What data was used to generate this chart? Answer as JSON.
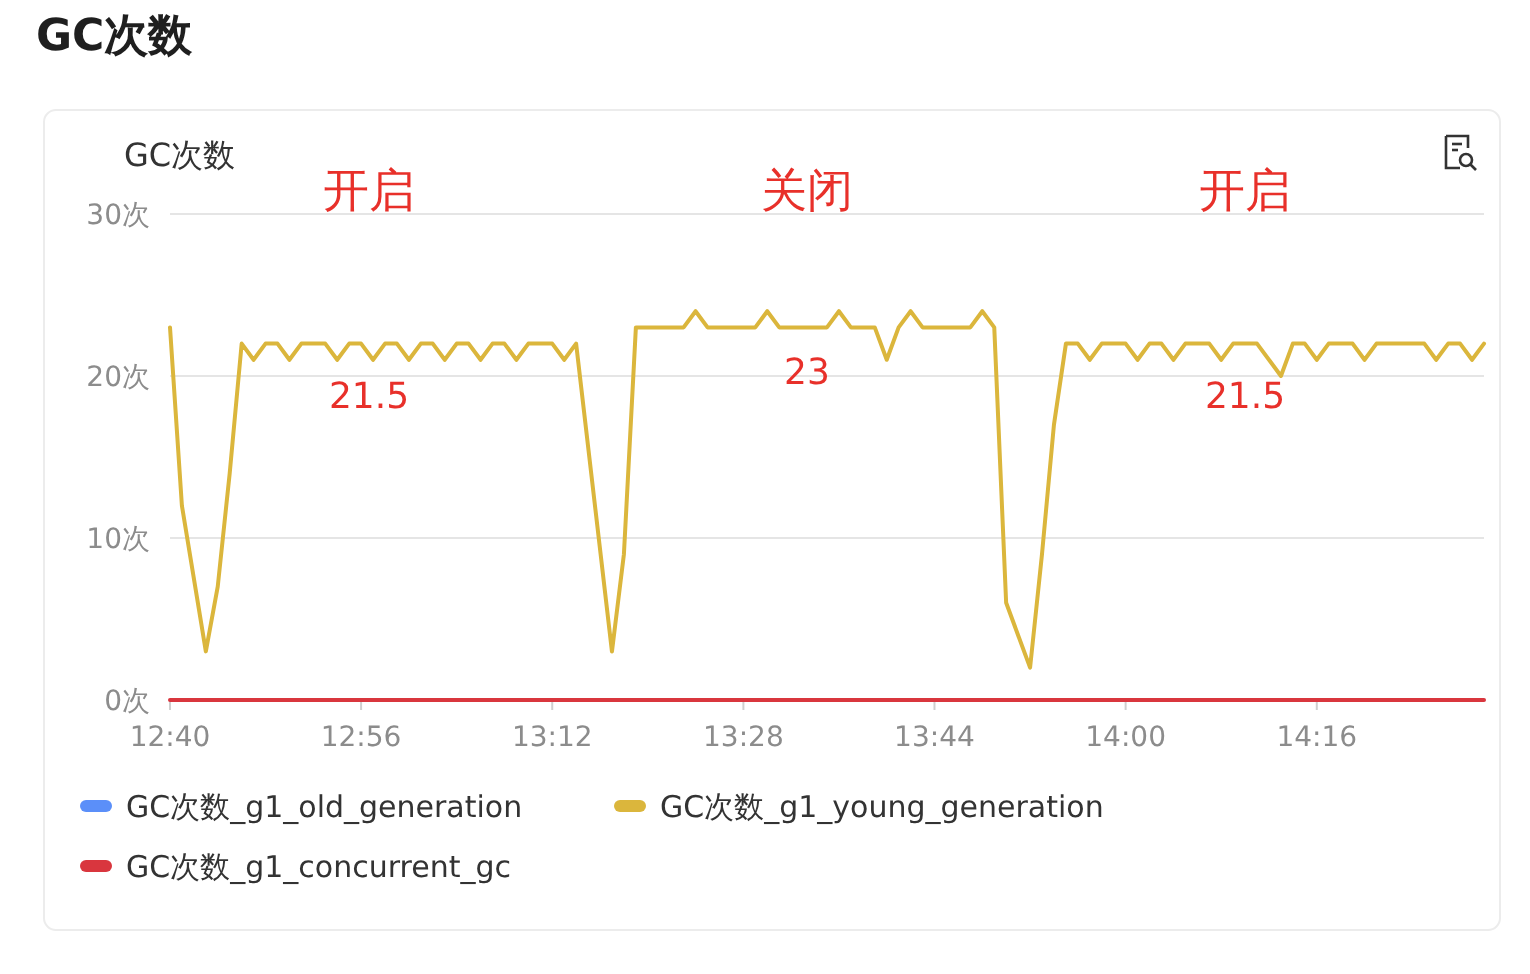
{
  "chart_data": {
    "type": "line",
    "title": "GC次数",
    "subtitle": "GC次数",
    "xlim": [
      12.6667,
      14.5
    ],
    "xticks": [
      {
        "value": 12.6667,
        "label": "12:40"
      },
      {
        "value": 12.9333,
        "label": "12:56"
      },
      {
        "value": 13.2,
        "label": "13:12"
      },
      {
        "value": 13.4667,
        "label": "13:28"
      },
      {
        "value": 13.7333,
        "label": "13:44"
      },
      {
        "value": 14,
        "label": "14:00"
      },
      {
        "value": 14.2667,
        "label": "14:16"
      }
    ],
    "ylim": [
      0,
      30
    ],
    "yticks": [
      {
        "value": 0,
        "label": "0次"
      },
      {
        "value": 10,
        "label": "10次"
      },
      {
        "value": 20,
        "label": "20次"
      },
      {
        "value": 30,
        "label": "30次"
      }
    ],
    "grid": "y",
    "legend": "bottom",
    "marker": "none",
    "line_style": "solid",
    "series": [
      {
        "name": "GC次数_g1_old_generation",
        "color": "#5b8ff9"
      },
      {
        "name": "GC次数_g1_young_generation",
        "color": "#dbb63c",
        "x": [
          12.6667,
          12.6833,
          12.7167,
          12.7333,
          12.75,
          12.7667,
          12.7833,
          12.8,
          12.8167,
          12.8333,
          12.85,
          12.8833,
          12.9,
          12.9167,
          12.9333,
          12.95,
          12.9667,
          12.9833,
          13,
          13.0167,
          13.0333,
          13.05,
          13.0667,
          13.0833,
          13.1,
          13.1167,
          13.1333,
          13.15,
          13.1667,
          13.2,
          13.2167,
          13.2333,
          13.2833,
          13.3,
          13.3167,
          13.3833,
          13.4,
          13.4167,
          13.4833,
          13.5,
          13.5167,
          13.5833,
          13.6,
          13.6167,
          13.65,
          13.6667,
          13.6833,
          13.7,
          13.7167,
          13.7833,
          13.8,
          13.8167,
          13.8333,
          13.8667,
          13.8833,
          13.9,
          13.9167,
          13.9333,
          13.95,
          13.9667,
          14,
          14.0167,
          14.0333,
          14.05,
          14.0667,
          14.0833,
          14.1167,
          14.1333,
          14.15,
          14.1833,
          14.2167,
          14.2333,
          14.25,
          14.2667,
          14.2833,
          14.3167,
          14.3333,
          14.35,
          14.4167,
          14.4333,
          14.45,
          14.4667,
          14.4833,
          14.5
        ],
        "values": [
          23,
          12,
          3,
          7,
          14,
          22,
          21,
          22,
          22,
          21,
          22,
          22,
          21,
          22,
          22,
          21,
          22,
          22,
          21,
          22,
          22,
          21,
          22,
          22,
          21,
          22,
          22,
          21,
          22,
          22,
          21,
          22,
          3,
          9,
          23,
          23,
          24,
          23,
          23,
          24,
          23,
          23,
          24,
          23,
          23,
          21,
          23,
          24,
          23,
          23,
          24,
          23,
          6,
          2,
          9,
          17,
          22,
          22,
          21,
          22,
          22,
          21,
          22,
          22,
          21,
          22,
          22,
          21,
          22,
          22,
          20,
          22,
          22,
          21,
          22,
          22,
          21,
          22,
          22,
          21,
          22,
          22,
          21,
          22
        ]
      },
      {
        "name": "GC次数_g1_concurrent_gc",
        "color": "#d9363e",
        "x": [
          12.6667,
          14.5
        ],
        "values": [
          0,
          0
        ]
      }
    ],
    "annotations": [
      "开启",
      "关闭",
      "开启",
      "21.5",
      "23",
      "21.5"
    ]
  }
}
